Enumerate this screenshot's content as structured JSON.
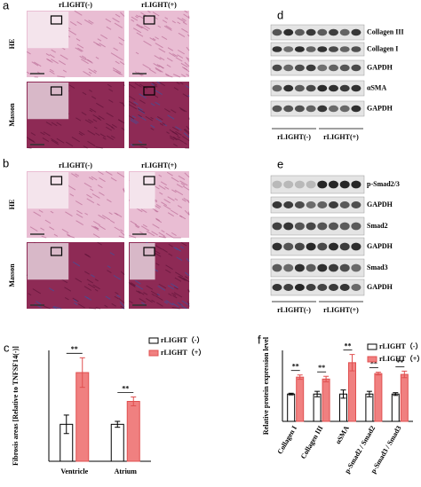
{
  "panel_labels": [
    "a",
    "b",
    "c",
    "d",
    "e",
    "f"
  ],
  "histology": [
    {
      "headers": [
        "rLIGHT(-)",
        "rLIGHT(+)"
      ],
      "rows": [
        "HE",
        "Masson"
      ]
    },
    {
      "headers": [
        "rLIGHT(-)",
        "rLIGHT(+)"
      ],
      "rows": [
        "HE",
        "Masson"
      ]
    }
  ],
  "blots": [
    {
      "rows": [
        "Collagen III",
        "Collagen I",
        "GAPDH",
        "αSMA",
        "GAPDH"
      ],
      "groups": [
        "rLIGHT(-)",
        "rLIGHT(+)"
      ]
    },
    {
      "rows": [
        "p-Smad2/3",
        "GAPDH",
        "Smad2",
        "GAPDH",
        "Smad3",
        "GAPDH"
      ],
      "groups": [
        "rLIGHT(-)",
        "rLIGHT(+)"
      ]
    }
  ],
  "chart_data": [
    {
      "type": "bar",
      "ylabel": "Fibrosis areas [Relative to TNFSF14(-)]",
      "categories": [
        "Ventricle",
        "Atrium"
      ],
      "series": [
        {
          "name": "rLIGHT（-）",
          "color": "#ffffff",
          "edgecolor": "#000000",
          "values": [
            1.0,
            1.0
          ],
          "errors": [
            0.25,
            0.08
          ]
        },
        {
          "name": "rLIGHT（+）",
          "color": "#f08080",
          "edgecolor": "#e05050",
          "values": [
            2.4,
            1.62
          ],
          "errors": [
            0.4,
            0.12
          ]
        }
      ],
      "annotations": [
        "**",
        "**"
      ],
      "ylim": [
        0,
        3
      ]
    },
    {
      "type": "bar",
      "ylabel": "Relative protein expression level",
      "categories": [
        "Collagen I",
        "Collagen III",
        "αSMA",
        "p-Smad2 / Smad2",
        "p-Smad3 / Smad3"
      ],
      "series": [
        {
          "name": "rLIGHT（-）",
          "color": "#ffffff",
          "edgecolor": "#000000",
          "values": [
            1.0,
            1.0,
            1.0,
            1.0,
            1.0
          ],
          "errors": [
            0.03,
            0.1,
            0.15,
            0.1,
            0.05
          ]
        },
        {
          "name": "rLIGHT（+）",
          "color": "#f08080",
          "edgecolor": "#e05050",
          "values": [
            1.62,
            1.55,
            2.15,
            1.75,
            1.72
          ],
          "errors": [
            0.08,
            0.1,
            0.3,
            0.05,
            0.12
          ]
        }
      ],
      "annotations": [
        "**",
        "**",
        "**",
        "**",
        "**"
      ],
      "ylim": [
        0,
        2.6
      ]
    }
  ]
}
